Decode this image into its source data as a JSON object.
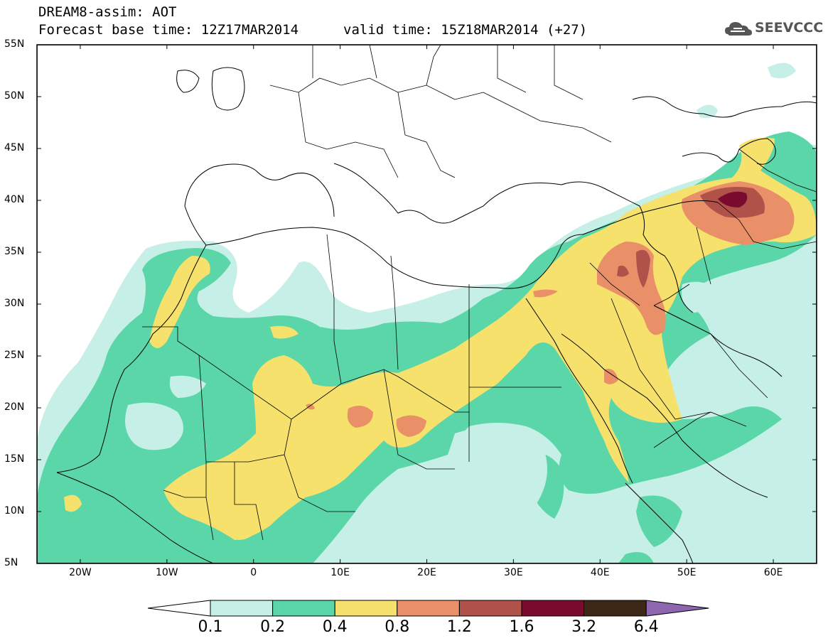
{
  "header": {
    "title_line1": "DREAM8-assim: AOT",
    "title_line2": "Forecast base time: 12Z17MAR2014",
    "valid_time": "valid time: 15Z18MAR2014 (+27)"
  },
  "logo": {
    "text": "SEEVCCC",
    "icon": "cloud-logo-icon"
  },
  "axes": {
    "lat_labels": [
      "55N",
      "50N",
      "45N",
      "40N",
      "35N",
      "30N",
      "25N",
      "20N",
      "15N",
      "10N",
      "5N"
    ],
    "lon_labels": [
      "20W",
      "10W",
      "0",
      "10E",
      "20E",
      "30E",
      "40E",
      "50E",
      "60E"
    ],
    "lat_range": [
      5,
      55
    ],
    "lon_range": [
      -25,
      65
    ]
  },
  "colorbar": {
    "labels": [
      "0.1",
      "0.2",
      "0.4",
      "0.8",
      "1.2",
      "1.6",
      "3.2",
      "6.4"
    ],
    "colors": [
      "#ffffff",
      "#c6efe7",
      "#5ad6a8",
      "#f5e16c",
      "#ea9068",
      "#b0514a",
      "#7a0a2e",
      "#3d2817",
      "#8e66b0"
    ]
  },
  "field_colors": {
    "c1": "#c6efe7",
    "c2": "#5ad6a8",
    "c3": "#f5e16c",
    "c4": "#ea9068",
    "c5": "#b0514a",
    "c6": "#7a0a2e"
  }
}
